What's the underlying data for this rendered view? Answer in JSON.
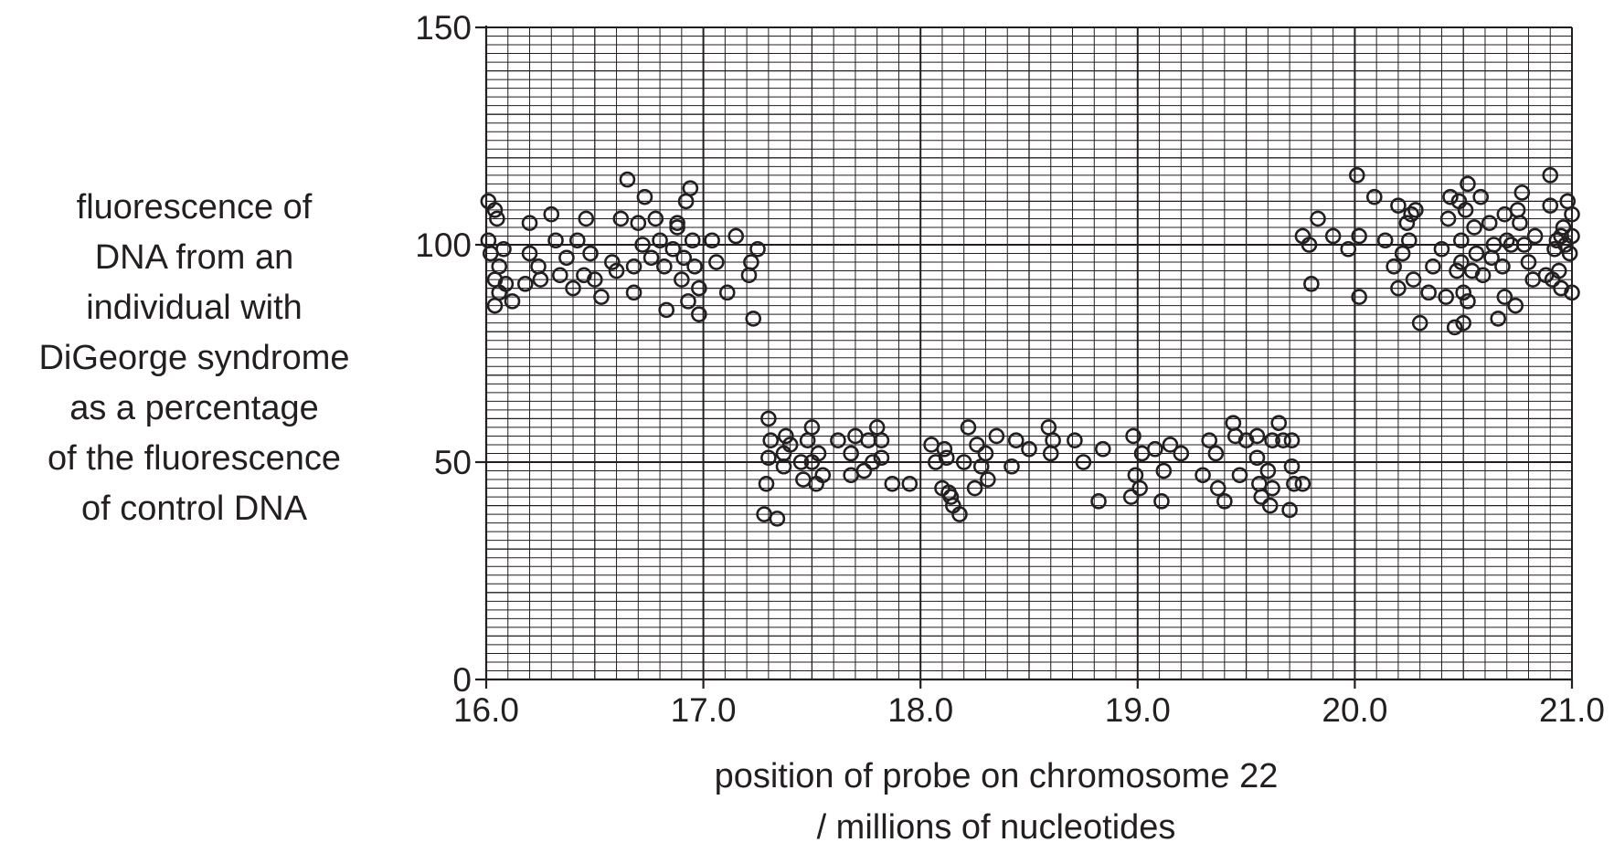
{
  "chart_data": {
    "type": "scatter",
    "title": "",
    "ylabel_lines": [
      "fluorescence of",
      "DNA from an",
      "individual with",
      "DiGeorge syndrome",
      "as a percentage",
      "of the fluorescence",
      "of control DNA"
    ],
    "xlabel_lines": [
      "position of probe on chromosome 22",
      "/ millions of nucleotides"
    ],
    "xlim": [
      16.0,
      21.0
    ],
    "ylim": [
      0,
      150
    ],
    "xticks": [
      16.0,
      17.0,
      18.0,
      19.0,
      20.0,
      21.0
    ],
    "xtick_labels": [
      "16.0",
      "17.0",
      "18.0",
      "19.0",
      "20.0",
      "21.0"
    ],
    "yticks": [
      0,
      50,
      100,
      150
    ],
    "ytick_labels": [
      "0",
      "50",
      "100",
      "150"
    ],
    "grid": true,
    "marker": "open-circle",
    "points": [
      [
        16.01,
        110
      ],
      [
        16.04,
        108
      ],
      [
        16.05,
        106
      ],
      [
        16.01,
        101
      ],
      [
        16.02,
        98
      ],
      [
        16.08,
        99
      ],
      [
        16.06,
        95
      ],
      [
        16.04,
        92
      ],
      [
        16.06,
        89
      ],
      [
        16.09,
        91
      ],
      [
        16.04,
        86
      ],
      [
        16.12,
        87
      ],
      [
        16.18,
        91
      ],
      [
        16.2,
        98
      ],
      [
        16.2,
        105
      ],
      [
        16.24,
        95
      ],
      [
        16.25,
        92
      ],
      [
        16.3,
        107
      ],
      [
        16.32,
        101
      ],
      [
        16.34,
        93
      ],
      [
        16.37,
        97
      ],
      [
        16.4,
        90
      ],
      [
        16.42,
        101
      ],
      [
        16.45,
        93
      ],
      [
        16.46,
        106
      ],
      [
        16.48,
        98
      ],
      [
        16.5,
        92
      ],
      [
        16.53,
        88
      ],
      [
        16.58,
        96
      ],
      [
        16.6,
        94
      ],
      [
        16.62,
        106
      ],
      [
        16.65,
        115
      ],
      [
        16.68,
        89
      ],
      [
        16.68,
        95
      ],
      [
        16.7,
        105
      ],
      [
        16.72,
        100
      ],
      [
        16.73,
        111
      ],
      [
        16.76,
        97
      ],
      [
        16.78,
        106
      ],
      [
        16.8,
        101
      ],
      [
        16.82,
        95
      ],
      [
        16.83,
        85
      ],
      [
        16.86,
        99
      ],
      [
        16.88,
        105
      ],
      [
        16.88,
        104
      ],
      [
        16.9,
        92
      ],
      [
        16.91,
        97
      ],
      [
        16.92,
        110
      ],
      [
        16.93,
        87
      ],
      [
        16.94,
        113
      ],
      [
        16.95,
        101
      ],
      [
        16.96,
        95
      ],
      [
        16.98,
        90
      ],
      [
        16.98,
        84
      ],
      [
        17.04,
        101
      ],
      [
        17.06,
        96
      ],
      [
        17.11,
        89
      ],
      [
        17.15,
        102
      ],
      [
        17.21,
        93
      ],
      [
        17.22,
        96
      ],
      [
        17.23,
        83
      ],
      [
        17.25,
        99
      ],
      [
        17.28,
        38
      ],
      [
        17.3,
        60
      ],
      [
        17.29,
        45
      ],
      [
        17.3,
        51
      ],
      [
        17.31,
        55
      ],
      [
        17.34,
        37
      ],
      [
        17.37,
        52
      ],
      [
        17.37,
        49
      ],
      [
        17.38,
        56
      ],
      [
        17.4,
        54
      ],
      [
        17.45,
        50
      ],
      [
        17.46,
        46
      ],
      [
        17.48,
        55
      ],
      [
        17.5,
        58
      ],
      [
        17.5,
        50
      ],
      [
        17.52,
        45
      ],
      [
        17.53,
        52
      ],
      [
        17.55,
        47
      ],
      [
        17.62,
        55
      ],
      [
        17.68,
        47
      ],
      [
        17.68,
        52
      ],
      [
        17.7,
        56
      ],
      [
        17.74,
        48
      ],
      [
        17.76,
        55
      ],
      [
        17.78,
        50
      ],
      [
        17.8,
        58
      ],
      [
        17.82,
        51
      ],
      [
        17.82,
        55
      ],
      [
        17.87,
        45
      ],
      [
        17.95,
        45
      ],
      [
        18.05,
        54
      ],
      [
        18.07,
        50
      ],
      [
        18.1,
        44
      ],
      [
        18.11,
        53
      ],
      [
        18.12,
        51
      ],
      [
        18.13,
        43
      ],
      [
        18.14,
        42
      ],
      [
        18.15,
        40
      ],
      [
        18.18,
        38
      ],
      [
        18.2,
        50
      ],
      [
        18.22,
        58
      ],
      [
        18.25,
        44
      ],
      [
        18.26,
        54
      ],
      [
        18.28,
        49
      ],
      [
        18.3,
        52
      ],
      [
        18.31,
        46
      ],
      [
        18.35,
        56
      ],
      [
        18.42,
        49
      ],
      [
        18.44,
        55
      ],
      [
        18.5,
        53
      ],
      [
        18.59,
        58
      ],
      [
        18.6,
        52
      ],
      [
        18.61,
        55
      ],
      [
        18.71,
        55
      ],
      [
        18.75,
        50
      ],
      [
        18.82,
        41
      ],
      [
        18.84,
        53
      ],
      [
        18.97,
        42
      ],
      [
        18.98,
        56
      ],
      [
        18.99,
        47
      ],
      [
        19.01,
        44
      ],
      [
        19.02,
        52
      ],
      [
        19.08,
        53
      ],
      [
        19.11,
        41
      ],
      [
        19.12,
        48
      ],
      [
        19.15,
        54
      ],
      [
        19.2,
        52
      ],
      [
        19.3,
        47
      ],
      [
        19.33,
        55
      ],
      [
        19.36,
        52
      ],
      [
        19.37,
        44
      ],
      [
        19.4,
        41
      ],
      [
        19.44,
        59
      ],
      [
        19.45,
        56
      ],
      [
        19.47,
        47
      ],
      [
        19.5,
        55
      ],
      [
        19.55,
        56
      ],
      [
        19.55,
        51
      ],
      [
        19.56,
        45
      ],
      [
        19.57,
        42
      ],
      [
        19.6,
        48
      ],
      [
        19.61,
        40
      ],
      [
        19.62,
        44
      ],
      [
        19.62,
        55
      ],
      [
        19.65,
        59
      ],
      [
        19.67,
        55
      ],
      [
        19.7,
        39
      ],
      [
        19.71,
        49
      ],
      [
        19.71,
        55
      ],
      [
        19.72,
        45
      ],
      [
        19.76,
        45
      ],
      [
        19.76,
        102
      ],
      [
        19.79,
        100
      ],
      [
        19.8,
        91
      ],
      [
        19.83,
        106
      ],
      [
        19.9,
        102
      ],
      [
        19.97,
        99
      ],
      [
        20.02,
        102
      ],
      [
        20.02,
        88
      ],
      [
        20.01,
        116
      ],
      [
        20.09,
        111
      ],
      [
        20.14,
        101
      ],
      [
        20.18,
        95
      ],
      [
        20.2,
        90
      ],
      [
        20.2,
        109
      ],
      [
        20.22,
        98
      ],
      [
        20.24,
        105
      ],
      [
        20.25,
        101
      ],
      [
        20.26,
        107
      ],
      [
        20.27,
        92
      ],
      [
        20.28,
        108
      ],
      [
        20.3,
        82
      ],
      [
        20.34,
        89
      ],
      [
        20.36,
        95
      ],
      [
        20.4,
        99
      ],
      [
        20.42,
        88
      ],
      [
        20.43,
        106
      ],
      [
        20.44,
        111
      ],
      [
        20.46,
        81
      ],
      [
        20.47,
        94
      ],
      [
        20.48,
        110
      ],
      [
        20.49,
        101
      ],
      [
        20.49,
        96
      ],
      [
        20.5,
        82
      ],
      [
        20.5,
        89
      ],
      [
        20.51,
        108
      ],
      [
        20.52,
        87
      ],
      [
        20.52,
        114
      ],
      [
        20.54,
        94
      ],
      [
        20.55,
        104
      ],
      [
        20.56,
        98
      ],
      [
        20.58,
        111
      ],
      [
        20.59,
        93
      ],
      [
        20.62,
        105
      ],
      [
        20.63,
        97
      ],
      [
        20.64,
        100
      ],
      [
        20.66,
        83
      ],
      [
        20.68,
        95
      ],
      [
        20.69,
        107
      ],
      [
        20.69,
        88
      ],
      [
        20.7,
        101
      ],
      [
        20.72,
        100
      ],
      [
        20.74,
        86
      ],
      [
        20.75,
        108
      ],
      [
        20.76,
        105
      ],
      [
        20.77,
        112
      ],
      [
        20.78,
        100
      ],
      [
        20.8,
        96
      ],
      [
        20.82,
        92
      ],
      [
        20.83,
        102
      ],
      [
        20.88,
        93
      ],
      [
        20.9,
        116
      ],
      [
        20.9,
        109
      ],
      [
        20.91,
        92
      ],
      [
        20.92,
        99
      ],
      [
        20.93,
        101
      ],
      [
        20.94,
        94
      ],
      [
        20.95,
        102
      ],
      [
        20.95,
        90
      ],
      [
        20.96,
        104
      ],
      [
        20.97,
        100
      ],
      [
        20.98,
        110
      ],
      [
        20.99,
        98
      ],
      [
        21.0,
        89
      ],
      [
        21.0,
        107
      ],
      [
        21.0,
        102
      ]
    ]
  }
}
